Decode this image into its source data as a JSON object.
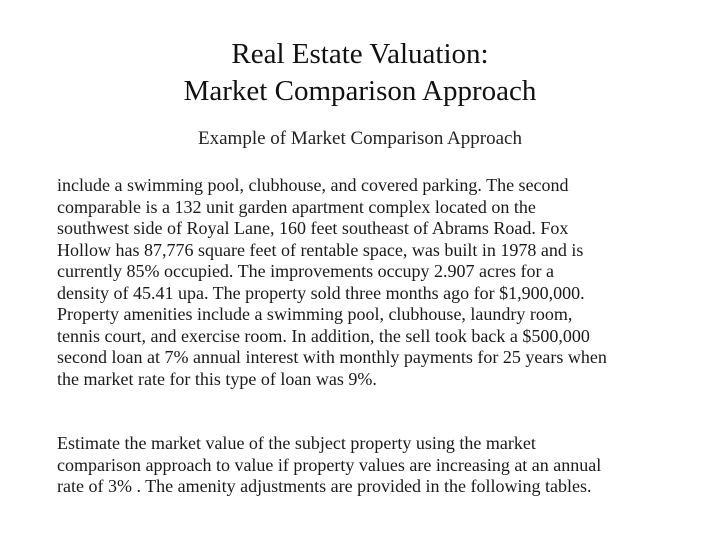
{
  "slide": {
    "title_lines": [
      "Real Estate Valuation:",
      "Market Comparison Approach"
    ],
    "subtitle": "Example of Market Comparison Approach",
    "paragraph1_lines": [
      "include a swimming pool, clubhouse, and covered parking.  The second",
      "comparable is a 132 unit garden apartment complex located on the",
      "southwest side of Royal Lane, 160 feet southeast of Abrams Road.  Fox",
      "Hollow has 87,776 square feet of rentable space, was built in 1978 and is",
      "currently 85% occupied.  The improvements occupy 2.907 acres for a",
      "density of 45.41 upa. The property sold three months ago for $1,900,000.",
      "Property amenities include a swimming pool, clubhouse, laundry room,",
      "tennis court, and exercise room.  In addition, the sell took back a $500,000",
      "second loan at 7% annual interest with monthly payments for 25 years when",
      "the market rate for this type of loan was 9%."
    ],
    "paragraph2_lines": [
      "Estimate the market value of the subject property using the market",
      "comparison approach to value if property values are increasing at an annual",
      "rate of 3% .  The amenity adjustments are provided in the following tables."
    ]
  }
}
